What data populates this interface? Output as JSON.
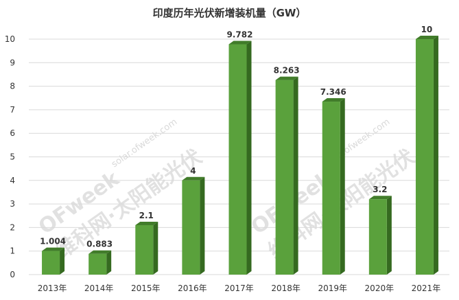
{
  "title": "印度历年光伏新增装机量（GW）",
  "watermark": {
    "brand": "OFweek",
    "sub": "维科网·太阳能光伏",
    "url": "solar.ofweek.com"
  },
  "chart_data": {
    "type": "bar",
    "title": "印度历年光伏新增装机量（GW）",
    "categories": [
      "2013年",
      "2014年",
      "2015年",
      "2016年",
      "2017年",
      "2018年",
      "2019年",
      "2020年",
      "2021年"
    ],
    "values": [
      1.004,
      0.883,
      2.1,
      4,
      9.782,
      8.263,
      7.346,
      3.2,
      10
    ],
    "data_labels": [
      "1.004",
      "0.883",
      "2.1",
      "4",
      "9.782",
      "8.263",
      "7.346",
      "3.2",
      "10"
    ],
    "ylim": [
      0,
      10
    ],
    "yticks": [
      0,
      1,
      2,
      3,
      4,
      5,
      6,
      7,
      8,
      9,
      10
    ],
    "grid": true,
    "style": "3d-column",
    "colors": {
      "front": "#5aa13c",
      "side": "#356a20",
      "top": "#417c2a",
      "grid": "#d9d9d9"
    }
  }
}
